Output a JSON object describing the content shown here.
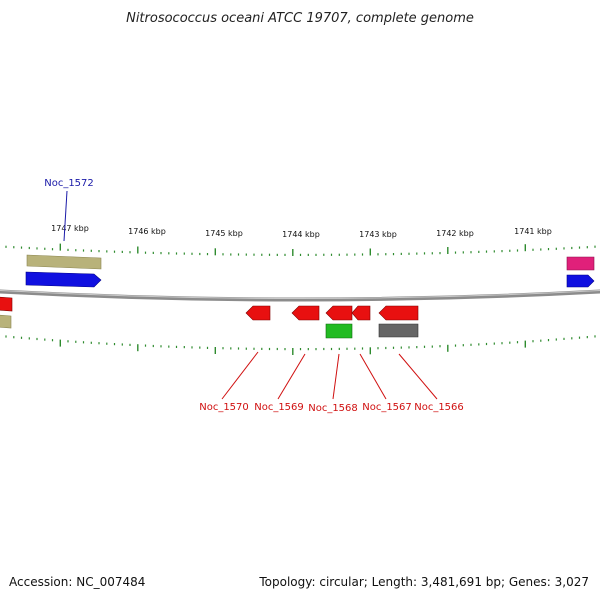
{
  "title": "Nitrosococcus oceani ATCC 19707, complete genome",
  "footer": {
    "accession": "Accession: NC_007484",
    "summary": "Topology: circular; Length: 3,481,691 bp; Genes: 3,027"
  },
  "scale_labels": [
    "1747 kbp",
    "1746 kbp",
    "1745 kbp",
    "1744 kbp",
    "1743 kbp",
    "1742 kbp",
    "1741 kbp"
  ],
  "gene_labels_top": [
    {
      "text": "Noc_1572",
      "color": "#1a1aa8"
    }
  ],
  "gene_labels_bottom": [
    {
      "text": "Noc_1570",
      "color": "#d01010"
    },
    {
      "text": "Noc_1569",
      "color": "#d01010"
    },
    {
      "text": "Noc_1568",
      "color": "#d01010"
    },
    {
      "text": "Noc_1567",
      "color": "#d01010"
    },
    {
      "text": "Noc_1566",
      "color": "#d01010"
    }
  ],
  "colors": {
    "backbone": "#8c8c8c",
    "tick": "#2e8b2e",
    "cds_forward": "#1010e0",
    "cds_reverse": "#e81010",
    "gene_forward": "#b8b27a",
    "gene_reverse": "#b8b27a",
    "trna": "#e0207a",
    "rrna_green": "#22bb22",
    "misc_gray": "#666666"
  }
}
